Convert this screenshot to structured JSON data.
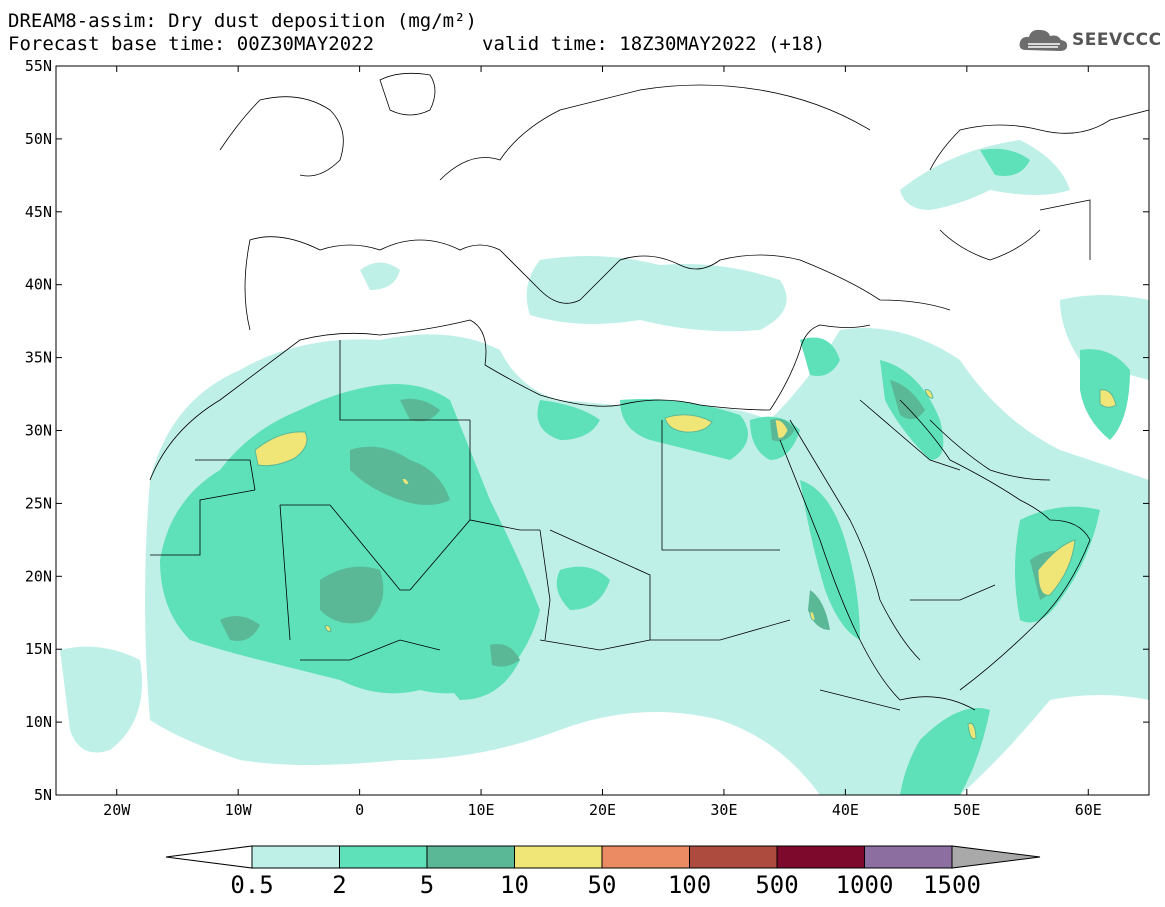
{
  "title": {
    "line1": "DREAM8-assim: Dry dust deposition (mg/m²)",
    "line2_left": "Forecast base time: 00Z30MAY2022",
    "line2_right": "valid time: 18Z30MAY2022 (+18)"
  },
  "logo": {
    "text": "SEEVCCC",
    "icon": "cloud-logo-icon"
  },
  "map": {
    "lon_range": [
      -25,
      65
    ],
    "lat_range": [
      5,
      55
    ],
    "lat_labels": [
      "5N",
      "10N",
      "15N",
      "20N",
      "25N",
      "30N",
      "35N",
      "40N",
      "45N",
      "50N",
      "55N"
    ],
    "lat_values": [
      5,
      10,
      15,
      20,
      25,
      30,
      35,
      40,
      45,
      50,
      55
    ],
    "lon_labels": [
      "20W",
      "10W",
      "0",
      "10E",
      "20E",
      "30E",
      "40E",
      "50E",
      "60E"
    ],
    "lon_values": [
      -20,
      -10,
      0,
      10,
      20,
      30,
      40,
      50,
      60
    ]
  },
  "colorbar": {
    "labels": [
      "0.5",
      "2",
      "5",
      "10",
      "50",
      "100",
      "500",
      "1000",
      "1500"
    ],
    "colors": [
      "#bff0e8",
      "#5ee0b8",
      "#5ab896",
      "#f0e678",
      "#eb8b63",
      "#ad4b3e",
      "#7d0a2c",
      "#8c6ea0",
      "#a9a9a9"
    ],
    "under_color": "#ffffff"
  }
}
